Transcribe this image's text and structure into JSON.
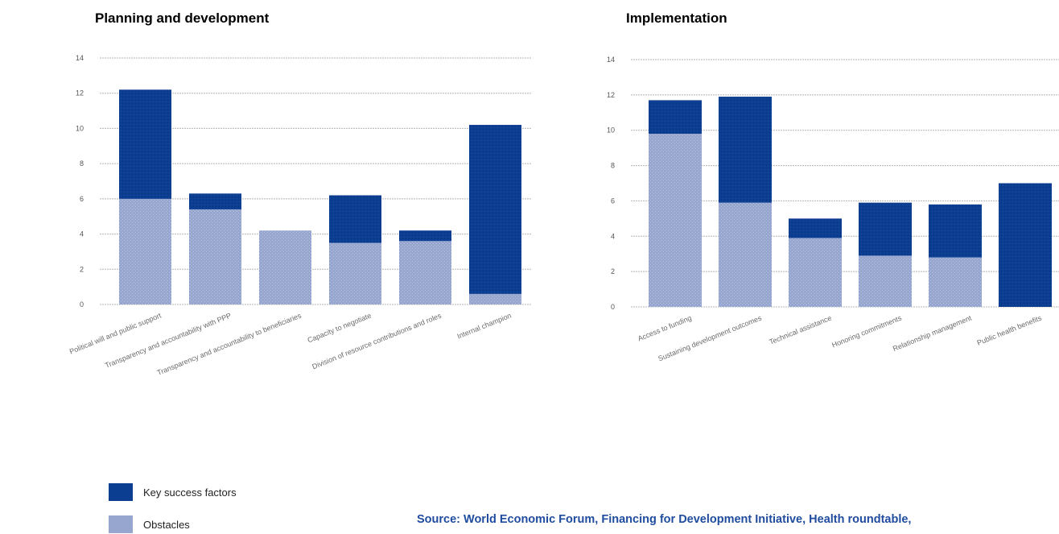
{
  "colors": {
    "key_success": "#0b3d91",
    "obstacles": "#97a6cf",
    "grid": "#b5b5b5",
    "source_text": "#1f4c9e"
  },
  "legend": {
    "key_success_label": "Key success factors",
    "obstacles_label": "Obstacles"
  },
  "source": "Source: World Economic Forum, Financing for Development Initiative, Health roundtable,",
  "chart_data": [
    {
      "type": "bar",
      "stacked": true,
      "title": "Planning and development",
      "xlabel": "",
      "ylabel": "",
      "ylim": [
        0,
        14
      ],
      "yticks": [
        "0",
        "2",
        "4",
        "6",
        "8",
        "10",
        "12",
        "14"
      ],
      "grid": true,
      "categories": [
        "Political will and public support",
        "Transparency and accountability with PPP",
        "Transparency and accountability to beneficiaries",
        "Capacity to negotiate",
        "Division of resource contributions and roles",
        "Internal champion"
      ],
      "series": [
        {
          "name": "Obstacles",
          "values": [
            6,
            5.4,
            4.2,
            3.5,
            3.6,
            0.6
          ]
        },
        {
          "name": "Key success factors",
          "values": [
            6.2,
            0.9,
            0,
            2.7,
            0.6,
            9.6
          ]
        }
      ]
    },
    {
      "type": "bar",
      "stacked": true,
      "title": "Implementation",
      "xlabel": "",
      "ylabel": "",
      "ylim": [
        0,
        14
      ],
      "yticks": [
        "0",
        "2",
        "4",
        "6",
        "8",
        "10",
        "12",
        "14"
      ],
      "grid": true,
      "categories": [
        "Access to funding",
        "Sustaining development outcomes",
        "Technical assistance",
        "Honoring commitments",
        "Relationship management",
        "Public health benefits"
      ],
      "series": [
        {
          "name": "Obstacles",
          "values": [
            9.8,
            5.9,
            3.9,
            2.9,
            2.8,
            0
          ]
        },
        {
          "name": "Key success factors",
          "values": [
            1.9,
            6,
            1.1,
            3,
            3,
            7
          ]
        }
      ]
    }
  ]
}
